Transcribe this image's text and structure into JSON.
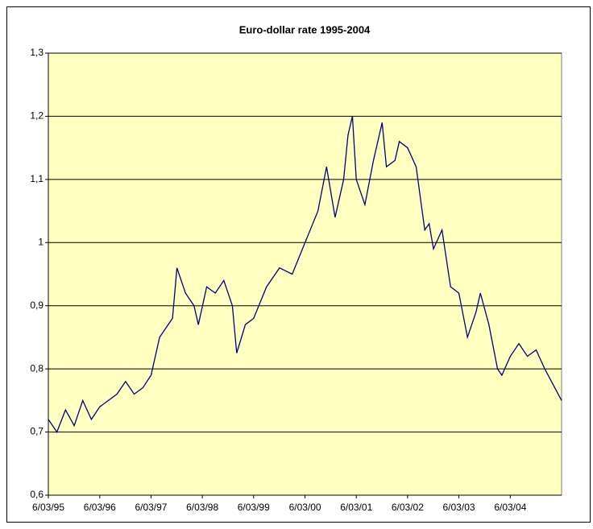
{
  "chart_data": {
    "type": "line",
    "title": "Euro-dollar rate 1995-2004",
    "x": [
      "1995-03-06",
      "1995-05-06",
      "1995-07-06",
      "1995-09-06",
      "1995-11-06",
      "1996-01-06",
      "1996-03-06",
      "1996-05-06",
      "1996-07-06",
      "1996-09-06",
      "1996-11-06",
      "1997-01-06",
      "1997-03-06",
      "1997-05-06",
      "1997-07-06",
      "1997-08-06",
      "1997-09-06",
      "1997-11-06",
      "1998-01-06",
      "1998-02-06",
      "1998-04-06",
      "1998-06-06",
      "1998-08-06",
      "1998-10-06",
      "1998-11-06",
      "1999-01-06",
      "1999-03-06",
      "1999-06-06",
      "1999-09-06",
      "1999-12-06",
      "2000-03-06",
      "2000-06-06",
      "2000-08-06",
      "2000-10-06",
      "2000-12-06",
      "2001-01-06",
      "2001-02-06",
      "2001-03-06",
      "2001-05-06",
      "2001-07-06",
      "2001-09-06",
      "2001-10-06",
      "2001-12-06",
      "2002-01-06",
      "2002-03-06",
      "2002-05-06",
      "2002-07-06",
      "2002-08-06",
      "2002-09-06",
      "2002-11-06",
      "2003-01-06",
      "2003-03-06",
      "2003-05-06",
      "2003-07-06",
      "2003-08-06",
      "2003-10-06",
      "2003-12-06",
      "2004-01-06",
      "2004-03-06",
      "2004-05-06",
      "2004-07-06",
      "2004-09-06",
      "2004-11-06",
      "2005-03-06"
    ],
    "series": [
      {
        "name": "Euro-dollar rate",
        "color": "#000080",
        "values": [
          0.72,
          0.7,
          0.735,
          0.71,
          0.75,
          0.72,
          0.74,
          0.75,
          0.76,
          0.78,
          0.76,
          0.77,
          0.79,
          0.85,
          0.87,
          0.88,
          0.96,
          0.92,
          0.9,
          0.87,
          0.93,
          0.92,
          0.94,
          0.9,
          0.825,
          0.87,
          0.88,
          0.93,
          0.96,
          0.95,
          1.0,
          1.05,
          1.12,
          1.04,
          1.1,
          1.17,
          1.2,
          1.1,
          1.06,
          1.13,
          1.19,
          1.12,
          1.13,
          1.16,
          1.15,
          1.12,
          1.02,
          1.03,
          0.99,
          1.02,
          0.93,
          0.92,
          0.85,
          0.89,
          0.92,
          0.87,
          0.8,
          0.79,
          0.82,
          0.84,
          0.82,
          0.83,
          0.8,
          0.75
        ]
      }
    ],
    "xlim": [
      "1995-03-06",
      "2005-03-06"
    ],
    "xticks": [
      {
        "value": "1995-03-06",
        "label": "6/03/95"
      },
      {
        "value": "1996-03-06",
        "label": "6/03/96"
      },
      {
        "value": "1997-03-06",
        "label": "6/03/97"
      },
      {
        "value": "1998-03-06",
        "label": "6/03/98"
      },
      {
        "value": "1999-03-06",
        "label": "6/03/99"
      },
      {
        "value": "2000-03-06",
        "label": "6/03/00"
      },
      {
        "value": "2001-03-06",
        "label": "6/03/01"
      },
      {
        "value": "2002-03-06",
        "label": "6/03/02"
      },
      {
        "value": "2003-03-06",
        "label": "6/03/03"
      },
      {
        "value": "2004-03-06",
        "label": "6/03/04"
      }
    ],
    "ylim": [
      0.6,
      1.3
    ],
    "yticks": [
      {
        "value": 0.6,
        "label": "0,6"
      },
      {
        "value": 0.7,
        "label": "0,7"
      },
      {
        "value": 0.8,
        "label": "0,8"
      },
      {
        "value": 0.9,
        "label": "0,9"
      },
      1,
      {
        "value": 1.1,
        "label": "1,1"
      },
      {
        "value": 1.2,
        "label": "1,2"
      },
      {
        "value": 1.3,
        "label": "1,3"
      }
    ],
    "grid": true
  }
}
